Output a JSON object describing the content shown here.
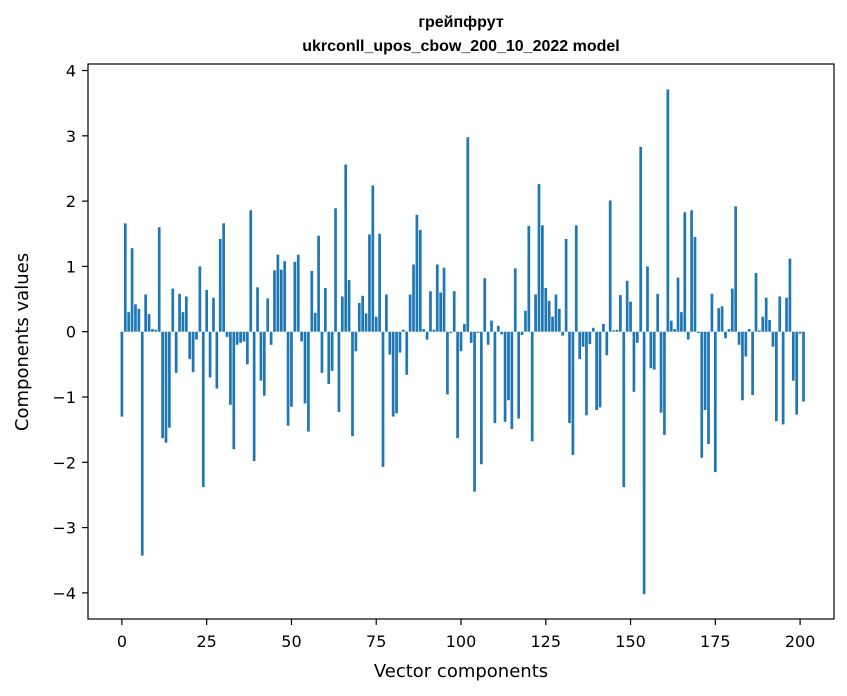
{
  "chart_data": {
    "type": "bar",
    "title": "грейпфрут",
    "subtitle": "ukrconll_upos_cbow_200_10_2022 model",
    "xlabel": "Vector components",
    "ylabel": "Components values",
    "xlim": [
      -10,
      210
    ],
    "ylim": [
      -4.4,
      4.1
    ],
    "xticks": [
      0,
      25,
      50,
      75,
      100,
      125,
      150,
      175,
      200
    ],
    "yticks": [
      -4,
      -3,
      -2,
      -1,
      0,
      1,
      2,
      3,
      4
    ],
    "xtick_labels": [
      "0",
      "25",
      "50",
      "75",
      "100",
      "125",
      "150",
      "175",
      "200"
    ],
    "ytick_labels": [
      "−4",
      "−3",
      "−2",
      "−1",
      "0",
      "1",
      "2",
      "3",
      "4"
    ],
    "grid": false,
    "bar_color": "#1f77b4",
    "values": [
      -1.3,
      1.66,
      0.3,
      1.28,
      0.42,
      0.35,
      -3.43,
      0.57,
      0.27,
      0.04,
      0.03,
      1.6,
      -1.63,
      -1.7,
      -1.47,
      0.66,
      -0.63,
      0.58,
      0.3,
      0.54,
      -0.42,
      -0.62,
      -0.12,
      1.0,
      -2.38,
      0.64,
      -0.7,
      0.52,
      -0.87,
      1.42,
      1.66,
      -0.08,
      -1.12,
      -1.8,
      -0.2,
      -0.17,
      -0.15,
      -0.5,
      1.86,
      -1.98,
      0.68,
      -0.75,
      -0.98,
      0.51,
      -0.2,
      0.94,
      1.18,
      0.95,
      1.08,
      -1.44,
      -1.15,
      1.07,
      1.18,
      -0.15,
      -1.1,
      -1.53,
      0.93,
      0.29,
      1.47,
      -0.63,
      0.67,
      -0.8,
      -0.6,
      1.89,
      -1.23,
      0.54,
      2.56,
      0.79,
      -1.6,
      -0.3,
      0.44,
      0.55,
      0.28,
      1.49,
      2.24,
      0.23,
      1.5,
      -2.07,
      0.57,
      -0.35,
      -1.3,
      -1.25,
      -0.32,
      0.03,
      -0.66,
      0.57,
      1.03,
      1.79,
      1.56,
      0.04,
      -0.12,
      0.62,
      0.03,
      1.03,
      0.6,
      0.98,
      -0.96,
      -0.02,
      0.62,
      -1.63,
      -0.3,
      0.12,
      2.98,
      -0.17,
      -2.45,
      -0.02,
      -2.03,
      0.82,
      -0.2,
      0.17,
      -1.4,
      0.09,
      -0.04,
      -1.38,
      -1.05,
      -1.49,
      0.97,
      -1.33,
      -0.05,
      0.32,
      1.62,
      -1.68,
      0.57,
      2.26,
      1.63,
      0.67,
      0.47,
      0.23,
      0.57,
      0.35,
      -0.06,
      1.42,
      -1.4,
      -1.89,
      1.63,
      -0.42,
      -0.23,
      -1.28,
      -0.19,
      0.06,
      -1.2,
      -1.16,
      0.12,
      -0.36,
      2.01,
      0.02,
      0.03,
      0.56,
      -2.38,
      0.78,
      0.46,
      -0.92,
      -0.17,
      2.83,
      -4.02,
      1.0,
      -0.56,
      -0.58,
      0.58,
      -1.24,
      -1.58,
      3.71,
      0.17,
      0.04,
      0.83,
      0.3,
      1.83,
      -0.12,
      1.86,
      1.45,
      -0.02,
      -1.93,
      -1.2,
      -1.72,
      0.58,
      -2.15,
      0.36,
      0.39,
      -0.1,
      0.04,
      0.66,
      1.92,
      -0.2,
      -1.05,
      -0.38,
      0.04,
      -0.97,
      0.9,
      0.02,
      0.23,
      0.52,
      0.18,
      -0.23,
      -1.37,
      0.54,
      -1.42,
      0.52,
      1.12,
      -0.75,
      -1.27,
      -0.03,
      -1.07
    ]
  }
}
